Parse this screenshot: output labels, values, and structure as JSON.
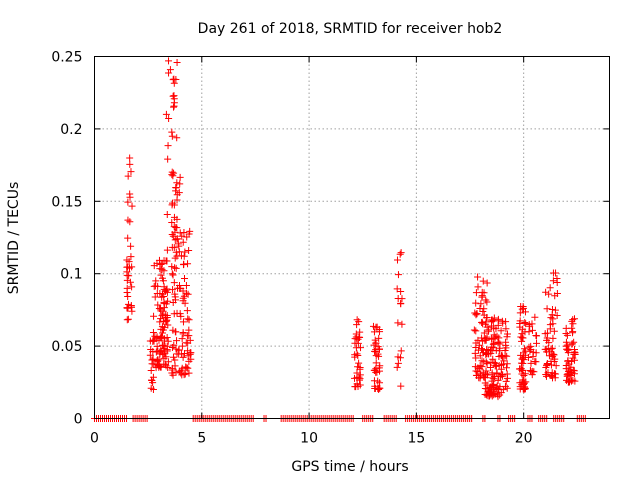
{
  "chart_data": {
    "type": "scatter",
    "title": "Day 261 of 2018, SRMTID for receiver hob2",
    "xlabel": "GPS time / hours",
    "ylabel": "SRMTID / TECUs",
    "xlim": [
      0,
      24
    ],
    "ylim": [
      0,
      0.25
    ],
    "x_ticks": [
      0,
      5,
      10,
      15,
      20
    ],
    "x_tick_labels": [
      "0",
      "5",
      "10",
      "15",
      "20"
    ],
    "y_ticks": [
      0,
      0.05,
      0.1,
      0.15,
      0.2,
      0.25
    ],
    "y_tick_labels": [
      "0",
      "0.05",
      "0.1",
      "0.15",
      "0.2",
      "0.25"
    ],
    "grid": true,
    "marker": "+",
    "series_color": "#ff0000",
    "zero_segments": [
      [
        0.0,
        1.5
      ],
      [
        1.8,
        2.5
      ],
      [
        4.6,
        7.4
      ],
      [
        7.9,
        8.0
      ],
      [
        8.7,
        12.1
      ],
      [
        12.5,
        13.0
      ],
      [
        13.5,
        14.1
      ],
      [
        14.5,
        17.6
      ],
      [
        18.1,
        18.2
      ],
      [
        18.8,
        18.9
      ],
      [
        19.3,
        19.6
      ],
      [
        20.2,
        20.4
      ],
      [
        20.7,
        21.1
      ],
      [
        21.4,
        21.9
      ],
      [
        22.5,
        22.9
      ]
    ],
    "clusters": [
      {
        "x": [
          1.5,
          1.75
        ],
        "y": [
          0.068,
          0.135
        ],
        "n": 28
      },
      {
        "x": [
          1.55,
          1.75
        ],
        "y": [
          0.135,
          0.185
        ],
        "n": 10
      },
      {
        "x": [
          2.6,
          2.75
        ],
        "y": [
          0.018,
          0.06
        ],
        "n": 18
      },
      {
        "x": [
          2.75,
          3.45
        ],
        "y": [
          0.035,
          0.11
        ],
        "n": 110
      },
      {
        "x": [
          3.35,
          3.85
        ],
        "y": [
          0.11,
          0.25
        ],
        "n": 40
      },
      {
        "x": [
          3.6,
          4.05
        ],
        "y": [
          0.028,
          0.17
        ],
        "n": 60
      },
      {
        "x": [
          4.05,
          4.5
        ],
        "y": [
          0.03,
          0.13
        ],
        "n": 55
      },
      {
        "x": [
          12.1,
          12.4
        ],
        "y": [
          0.022,
          0.07
        ],
        "n": 35
      },
      {
        "x": [
          13.0,
          13.3
        ],
        "y": [
          0.02,
          0.07
        ],
        "n": 40
      },
      {
        "x": [
          14.1,
          14.35
        ],
        "y": [
          0.022,
          0.115
        ],
        "n": 18
      },
      {
        "x": [
          17.7,
          18.3
        ],
        "y": [
          0.028,
          0.103
        ],
        "n": 70
      },
      {
        "x": [
          18.2,
          19.25
        ],
        "y": [
          0.015,
          0.07
        ],
        "n": 140
      },
      {
        "x": [
          19.8,
          20.1
        ],
        "y": [
          0.02,
          0.08
        ],
        "n": 55
      },
      {
        "x": [
          20.2,
          20.6
        ],
        "y": [
          0.03,
          0.07
        ],
        "n": 25
      },
      {
        "x": [
          21.0,
          21.6
        ],
        "y": [
          0.028,
          0.102
        ],
        "n": 60
      },
      {
        "x": [
          21.95,
          22.4
        ],
        "y": [
          0.025,
          0.07
        ],
        "n": 55
      }
    ]
  }
}
